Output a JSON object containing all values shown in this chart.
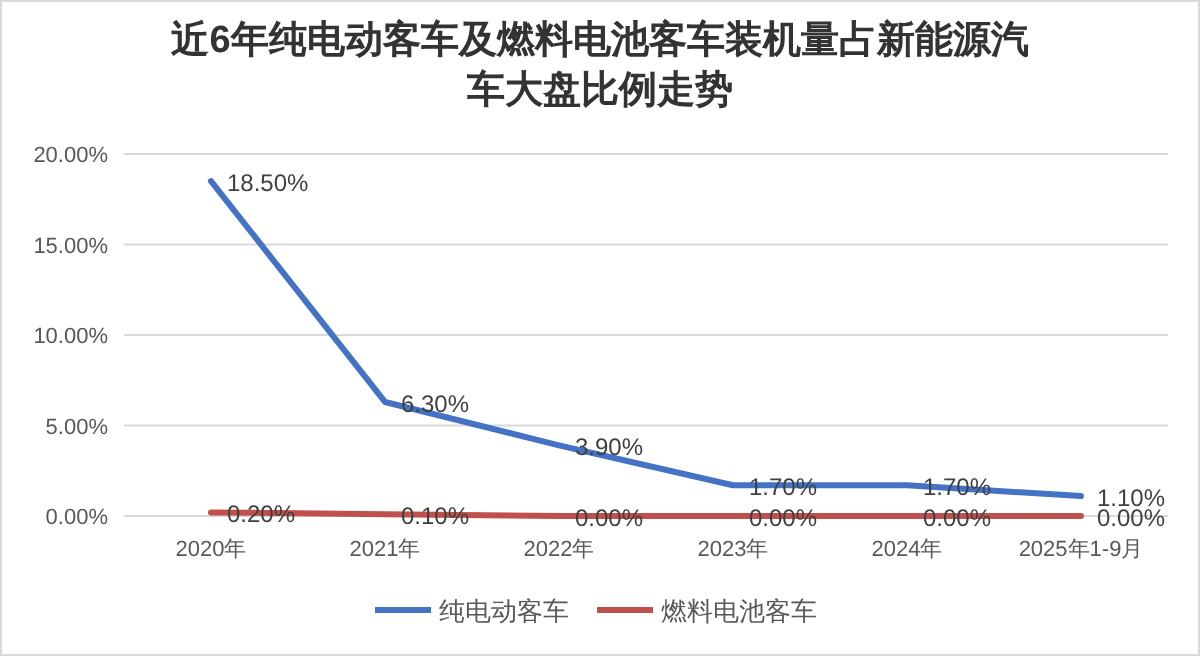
{
  "chart_data": {
    "type": "line",
    "title": "近6年纯电动客车及燃料电池客车装机量占新能源汽车大盘比例走势",
    "categories": [
      "2020年",
      "2021年",
      "2022年",
      "2023年",
      "2024年",
      "2025年1-9月"
    ],
    "series": [
      {
        "name": "纯电动客车",
        "color": "#4472c4",
        "values": [
          18.5,
          6.3,
          3.9,
          1.7,
          1.7,
          1.1
        ],
        "value_labels": [
          "18.50%",
          "6.30%",
          "3.90%",
          "1.70%",
          "1.70%",
          "1.10%"
        ]
      },
      {
        "name": "燃料电池客车",
        "color": "#c0504d",
        "values": [
          0.2,
          0.1,
          0,
          0,
          0,
          0
        ],
        "value_labels": [
          "0.20%",
          "0.10%",
          "0.00%",
          "0.00%",
          "0.00%",
          "0.00%"
        ]
      }
    ],
    "ylim": [
      0,
      20
    ],
    "yticks": [
      {
        "value": 0,
        "label": "0.00%"
      },
      {
        "value": 5,
        "label": "5.00%"
      },
      {
        "value": 10,
        "label": "10.00%"
      },
      {
        "value": 15,
        "label": "15.00%"
      },
      {
        "value": 20,
        "label": "20.00%"
      }
    ],
    "grid": "y",
    "legend": "bottom",
    "marker": "none",
    "line_style": "solid"
  }
}
